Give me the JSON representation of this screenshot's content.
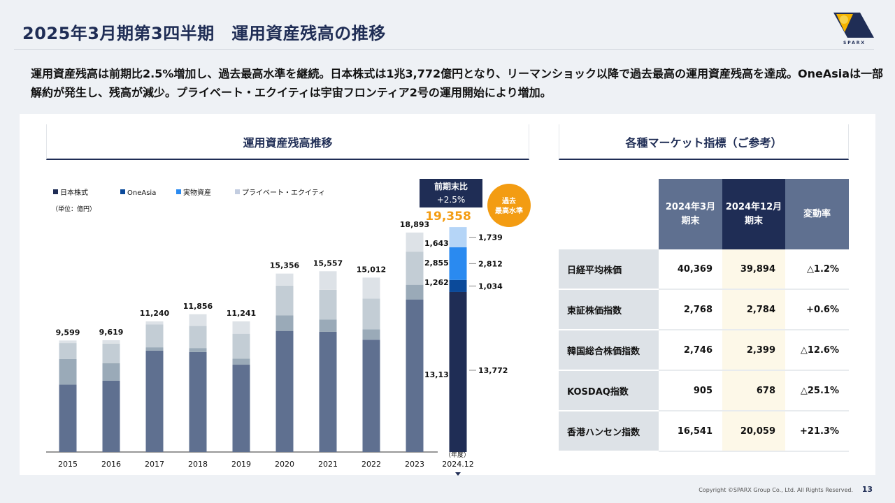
{
  "header": {
    "title": "2025年3月期第3四半期　運用資産残高の推移",
    "logo_text": "SPARX"
  },
  "summary": "運用資産残高は前期比2.5%増加し、過去最高水準を継続。日本株式は1兆3,772億円となり、リーマンショック以降で過去最高の運用資産残高を達成。OneAsiaは一部解約が発生し、残高が減少。プライベート・エクイティは宇宙フロンティア2号の運用開始により増加。",
  "left_section": {
    "title": "運用資産残高推移"
  },
  "right_section": {
    "title": "各種マーケット指標（ご参考）"
  },
  "chart_data": {
    "type": "bar",
    "stacked": true,
    "unit": "（単位：億円）",
    "xlabel": "（年度）",
    "categories": [
      "2015",
      "2016",
      "2017",
      "2018",
      "2019",
      "2020",
      "2021",
      "2022",
      "2023",
      "2024.12"
    ],
    "series": [
      {
        "name": "日本株式",
        "values": [
          5800,
          6140,
          8727,
          8606,
          7515,
          10424,
          10345,
          9655,
          13131,
          13772
        ]
      },
      {
        "name": "OneAsia",
        "values": [
          2200,
          1496,
          285,
          344,
          527,
          1334,
          1049,
          909,
          1262,
          1034
        ]
      },
      {
        "name": "実物資産",
        "values": [
          1376,
          1697,
          1976,
          1898,
          2140,
          2563,
          2564,
          2648,
          2855,
          2812
        ]
      },
      {
        "name": "プライベート・エクイティ",
        "values": [
          223,
          286,
          252,
          1008,
          1059,
          1035,
          1599,
          1800,
          1643,
          1739
        ]
      }
    ],
    "totals": [
      "9,599",
      "9,619",
      "11,240",
      "11,856",
      "11,241",
      "15,356",
      "15,557",
      "15,012",
      "18,893",
      "19,358"
    ],
    "segment_labels_2023": [
      "13,131",
      "1,262",
      "2,855",
      "1,643"
    ],
    "segment_labels_2024": [
      "13,772",
      "1,034",
      "2,812",
      "1,739"
    ],
    "ylim": [
      0,
      20000
    ],
    "legend_placement": "top-left",
    "colors_history": [
      "#5f7090",
      "#9aaab8",
      "#c3cdd5",
      "#dde2e7"
    ],
    "colors_latest": [
      "#1f2d55",
      "#0b4a9a",
      "#2a8af0",
      "#b5d5f7"
    ],
    "legend_colors": [
      "#1f2d55",
      "#0b4a9a",
      "#2a8af0",
      "#c3cde0"
    ],
    "callout": {
      "line1": "前期末比",
      "line2": "+2.5%",
      "badge": "過去\n最高水準",
      "highlight_color": "#f39c12"
    }
  },
  "table": {
    "headers": [
      "2024年3月\n期末",
      "2024年12月\n期末",
      "変動率"
    ],
    "rows": [
      {
        "label": "日経平均株価",
        "mar": "40,369",
        "dec": "39,894",
        "chg": "△1.2%"
      },
      {
        "label": "東証株価指数",
        "mar": "2,768",
        "dec": "2,784",
        "chg": "+0.6%"
      },
      {
        "label": "韓国総合株価指数",
        "mar": "2,746",
        "dec": "2,399",
        "chg": "△12.6%"
      },
      {
        "label": "KOSDAQ指数",
        "mar": "905",
        "dec": "678",
        "chg": "△25.1%"
      },
      {
        "label": "香港ハンセン指数",
        "mar": "16,541",
        "dec": "20,059",
        "chg": "+21.3%"
      }
    ]
  },
  "footer": {
    "copyright": "Copyright ©SPARX Group Co., Ltd. All Rights Reserved.",
    "page": "13"
  }
}
